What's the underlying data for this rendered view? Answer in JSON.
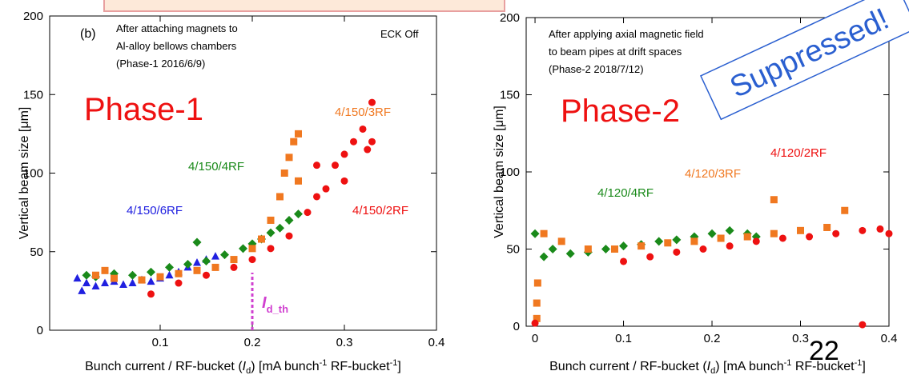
{
  "chart_data": [
    {
      "type": "scatter",
      "panel": "(b)",
      "annotations": [
        "After attaching magnets to",
        "Al-alloy bellows chambers",
        "(Phase-1 2016/6/9)"
      ],
      "status": "ECK Off",
      "phase": "Phase-1",
      "x_label": [
        "Bunch current / RF-bucket (",
        "I",
        "d",
        ") [mA bunch",
        "-1",
        " RF-bucket",
        "-1",
        "]"
      ],
      "y_label": "Vertical beam size [μm]",
      "xlim": [
        -0.02,
        0.4
      ],
      "xticks": [
        0.1,
        0.2,
        0.3,
        0.4
      ],
      "ylim": [
        0,
        200
      ],
      "yticks": [
        0,
        50,
        100,
        150,
        200
      ],
      "threshold": {
        "x": 0.2,
        "label": [
          "I",
          "d_th"
        ],
        "color": "#d040d0"
      },
      "series": [
        {
          "name": "4/150/6RF",
          "color": "#2020e0",
          "marker": "triangle",
          "x": [
            0.01,
            0.015,
            0.02,
            0.03,
            0.04,
            0.05,
            0.06,
            0.07,
            0.08,
            0.09,
            0.1,
            0.11,
            0.12,
            0.13,
            0.14,
            0.15,
            0.16
          ],
          "y": [
            33,
            25,
            30,
            28,
            30,
            31,
            29,
            30,
            32,
            31,
            33,
            35,
            37,
            40,
            43,
            45,
            47
          ]
        },
        {
          "name": "4/150/4RF",
          "color": "#1a8a1a",
          "marker": "diamond",
          "x": [
            0.02,
            0.03,
            0.05,
            0.07,
            0.09,
            0.11,
            0.13,
            0.14,
            0.15,
            0.17,
            0.19,
            0.2,
            0.21,
            0.22,
            0.23,
            0.24,
            0.25
          ],
          "y": [
            35,
            34,
            36,
            35,
            37,
            40,
            42,
            56,
            44,
            48,
            52,
            55,
            58,
            62,
            65,
            70,
            74
          ]
        },
        {
          "name": "4/150/3RF",
          "color": "#f07820",
          "marker": "square",
          "x": [
            0.03,
            0.04,
            0.05,
            0.08,
            0.1,
            0.12,
            0.14,
            0.16,
            0.18,
            0.2,
            0.21,
            0.22,
            0.23,
            0.235,
            0.24,
            0.245,
            0.25,
            0.25
          ],
          "y": [
            35,
            38,
            33,
            32,
            34,
            36,
            38,
            40,
            45,
            52,
            58,
            70,
            85,
            100,
            110,
            120,
            125,
            95
          ]
        },
        {
          "name": "4/150/2RF",
          "color": "#ee1111",
          "marker": "circle",
          "x": [
            0.09,
            0.12,
            0.15,
            0.18,
            0.2,
            0.22,
            0.24,
            0.26,
            0.27,
            0.28,
            0.29,
            0.3,
            0.31,
            0.32,
            0.33,
            0.33,
            0.325,
            0.3,
            0.27
          ],
          "y": [
            23,
            30,
            35,
            40,
            45,
            52,
            60,
            75,
            85,
            90,
            105,
            112,
            120,
            128,
            145,
            120,
            115,
            95,
            105
          ]
        }
      ]
    },
    {
      "type": "scatter",
      "annotations": [
        "After applying axial magnetic field",
        "to beam pipes at drift spaces",
        "(Phase-2 2018/7/12)"
      ],
      "phase": "Phase-2",
      "stamp": "Suppressed!",
      "page_number": "22",
      "x_label": [
        "Bunch current / RF-bucket (",
        "I",
        "d",
        ") [mA bunch",
        "-1",
        " RF-bucket",
        "-1",
        "]"
      ],
      "y_label": "Vertical beam size [μm]",
      "xlim": [
        -0.01,
        0.4
      ],
      "xticks": [
        0,
        0.1,
        0.2,
        0.3,
        0.4
      ],
      "ylim": [
        0,
        200
      ],
      "yticks": [
        0,
        50,
        100,
        150,
        200
      ],
      "series": [
        {
          "name": "4/120/4RF",
          "color": "#1a8a1a",
          "marker": "diamond",
          "x": [
            0,
            0.01,
            0.02,
            0.04,
            0.06,
            0.08,
            0.1,
            0.12,
            0.14,
            0.16,
            0.18,
            0.2,
            0.22,
            0.24,
            0.25
          ],
          "y": [
            60,
            45,
            50,
            47,
            48,
            50,
            52,
            53,
            55,
            56,
            58,
            60,
            62,
            60,
            58
          ]
        },
        {
          "name": "4/120/3RF",
          "color": "#f07820",
          "marker": "square",
          "x": [
            0.002,
            0.002,
            0.003,
            0.01,
            0.03,
            0.06,
            0.09,
            0.12,
            0.15,
            0.18,
            0.21,
            0.24,
            0.27,
            0.27,
            0.3,
            0.33,
            0.35
          ],
          "y": [
            5,
            15,
            28,
            60,
            55,
            50,
            50,
            52,
            54,
            55,
            57,
            58,
            60,
            82,
            62,
            64,
            75
          ]
        },
        {
          "name": "4/120/2RF",
          "color": "#ee1111",
          "marker": "circle",
          "x": [
            0,
            0.1,
            0.13,
            0.16,
            0.19,
            0.22,
            0.25,
            0.28,
            0.31,
            0.34,
            0.37,
            0.39,
            0.4,
            0.37
          ],
          "y": [
            2,
            42,
            45,
            48,
            50,
            52,
            55,
            57,
            58,
            60,
            62,
            63,
            60,
            1
          ]
        }
      ]
    }
  ]
}
